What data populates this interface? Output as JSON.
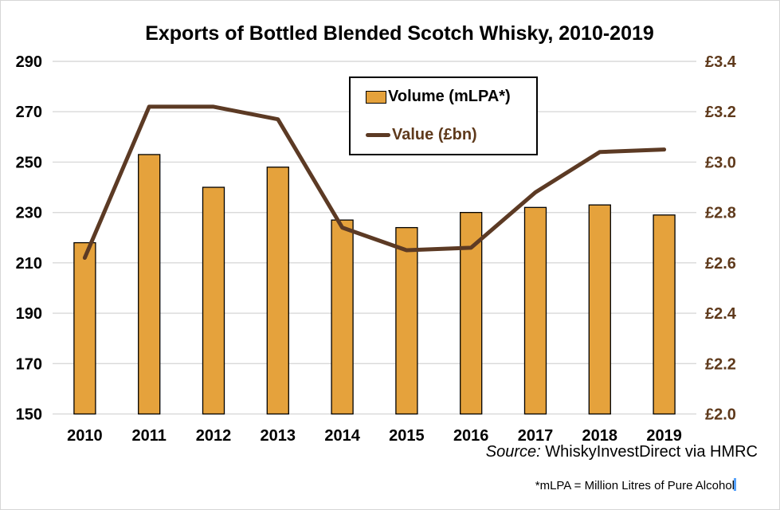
{
  "window": {
    "background": "#ffffff",
    "border_color": "#d6d6d6"
  },
  "chart_data": {
    "type": "bar",
    "subtype": "combo-bar-line-dual-axis",
    "title": "Exports of Bottled Blended Scotch Whisky, 2010-2019",
    "categories": [
      "2010",
      "2011",
      "2012",
      "2013",
      "2014",
      "2015",
      "2016",
      "2017",
      "2018",
      "2019"
    ],
    "series": [
      {
        "name": "Volume (mLPA*)",
        "type": "bar",
        "axis": "left",
        "values": [
          218,
          253,
          240,
          248,
          227,
          224,
          230,
          232,
          233,
          229
        ],
        "color": "#e5a23c",
        "border_color": "#000000",
        "label_color": "#000000"
      },
      {
        "name": "Value (£bn)",
        "type": "line",
        "axis": "right",
        "values": [
          2.62,
          3.22,
          3.22,
          3.17,
          2.74,
          2.65,
          2.66,
          2.88,
          3.04,
          3.05
        ],
        "color": "#5c3a24",
        "label_color": "#5f3a1c"
      }
    ],
    "left_axis": {
      "min": 150,
      "max": 290,
      "step": 20,
      "ticks": [
        "290",
        "270",
        "250",
        "230",
        "210",
        "190",
        "170",
        "150"
      ],
      "color": "#000000"
    },
    "right_axis": {
      "min": 2.0,
      "max": 3.4,
      "step": 0.2,
      "ticks": [
        "£3.4",
        "£3.2",
        "£3.0",
        "£2.8",
        "£2.6",
        "£2.4",
        "£2.2",
        "£2.0"
      ],
      "color": "#5f3a1c"
    },
    "x_axis_color": "#000000",
    "grid": true,
    "gridline_color": "#d9d9d9",
    "legend_position": "top-center",
    "xlabel": "",
    "ylabel": ""
  },
  "footer": {
    "source_prefix": "Source:",
    "source_text": " WhiskyInvestDirect via HMRC",
    "footnote": "*mLPA = Million Litres of Pure Alcohol"
  },
  "cursor": {
    "color": "#55a1fb"
  }
}
